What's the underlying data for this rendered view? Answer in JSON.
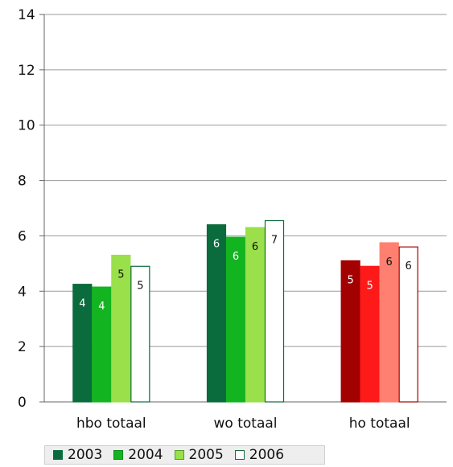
{
  "chart_data": {
    "type": "bar",
    "categories": [
      "hbo totaal",
      "wo totaal",
      "ho totaal"
    ],
    "series": [
      {
        "name": "2003",
        "values": [
          4.25,
          6.4,
          5.1
        ],
        "labels": [
          "4",
          "6",
          "5"
        ]
      },
      {
        "name": "2004",
        "values": [
          4.15,
          5.95,
          4.9
        ],
        "labels": [
          "4",
          "6",
          "5"
        ]
      },
      {
        "name": "2005",
        "values": [
          5.3,
          6.3,
          5.75
        ],
        "labels": [
          "5",
          "6",
          "6"
        ]
      },
      {
        "name": "2006",
        "values": [
          4.9,
          6.55,
          5.6
        ],
        "labels": [
          "5",
          "7",
          "6"
        ]
      }
    ],
    "ylim": [
      0,
      14
    ],
    "yticks": [
      0,
      2,
      4,
      6,
      8,
      10,
      12,
      14
    ],
    "grid": true,
    "legend_position": "bottom-left",
    "colors": {
      "hbo totaal": [
        "#0a6b3c",
        "#12b420",
        "#9ae04a",
        "#ffffff"
      ],
      "wo totaal": [
        "#0a6b3c",
        "#12b420",
        "#9ae04a",
        "#ffffff"
      ],
      "ho totaal": [
        "#a30000",
        "#ff1a1a",
        "#ff8070",
        "#ffffff"
      ]
    },
    "legend_colors": [
      "#0a6b3c",
      "#12b420",
      "#9ae04a",
      "#ffffff"
    ],
    "legend_borders": [
      "#0a6b3c",
      "#0a8a1a",
      "#4ca020",
      "#1a6b3a"
    ]
  }
}
